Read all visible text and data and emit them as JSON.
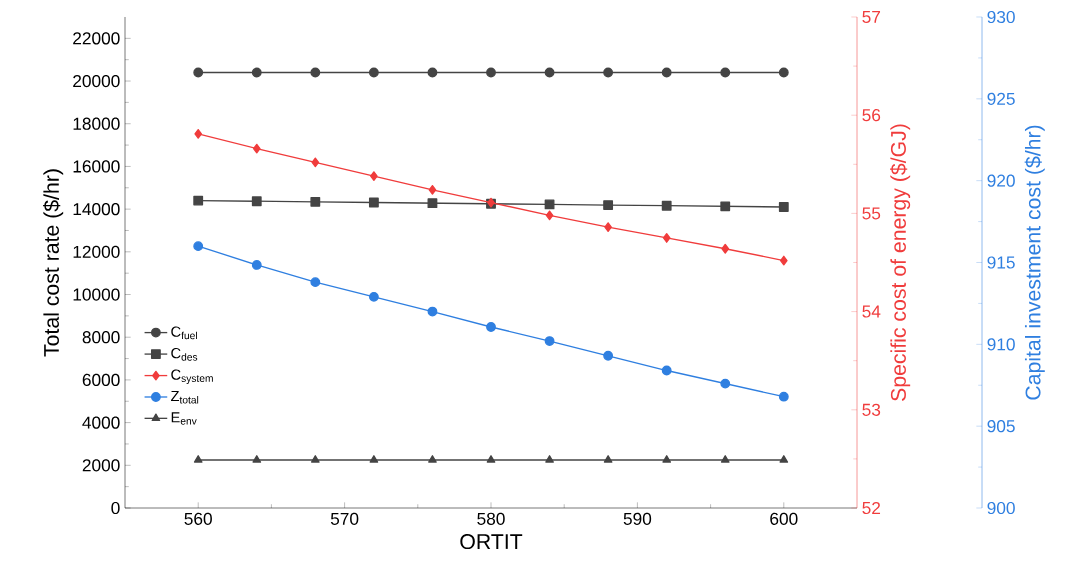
{
  "chart_data": {
    "type": "line",
    "xlabel": "ORTIT",
    "ylabel": "Total cost rate ($/hr)",
    "y2label": "Specific cost of energy ($/GJ)",
    "y3label": "Capital investment cost ($/hr)",
    "x": [
      560,
      564,
      568,
      572,
      576,
      580,
      584,
      588,
      592,
      596,
      600
    ],
    "xlim": [
      555,
      605
    ],
    "xticks": [
      560,
      570,
      580,
      590,
      600
    ],
    "ylim": [
      0,
      23000
    ],
    "yticks": [
      0,
      2000,
      4000,
      6000,
      8000,
      10000,
      12000,
      14000,
      16000,
      18000,
      20000,
      22000
    ],
    "y2lim": [
      52,
      57
    ],
    "y2ticks": [
      52,
      53,
      54,
      55,
      56,
      57
    ],
    "y3lim": [
      900,
      930
    ],
    "y3ticks": [
      900,
      905,
      910,
      915,
      920,
      925,
      930
    ],
    "legend": "left",
    "grid": false,
    "line_style": "solid",
    "series": [
      {
        "name": "C$_{fuel}$",
        "color": "#444444",
        "marker": "circle",
        "values": [
          20400,
          20400,
          20400,
          20400,
          20400,
          20400,
          20400,
          20400,
          20400,
          20400,
          20400
        ]
      },
      {
        "name": "C$_{des}$",
        "color": "#444444",
        "marker": "square",
        "values": [
          14400,
          14370,
          14340,
          14310,
          14280,
          14250,
          14220,
          14190,
          14160,
          14130,
          14100
        ]
      },
      {
        "name": "C$_{system}$",
        "color": "#f03c3c",
        "marker": "diamond",
        "axis": "y2",
        "values": [
          55.81,
          55.66,
          55.52,
          55.38,
          55.24,
          55.11,
          54.98,
          54.86,
          54.75,
          54.64,
          54.52
        ]
      },
      {
        "name": "Z$_{total}$",
        "color": "#2f7fe0",
        "marker": "circle",
        "axis": "y3",
        "values": [
          916.0,
          914.85,
          913.8,
          912.9,
          912.0,
          911.06,
          910.2,
          909.3,
          908.4,
          907.6,
          906.8
        ]
      },
      {
        "name": "E$_{env}$",
        "color": "#444444",
        "marker": "triangle",
        "values": [
          2250,
          2250,
          2250,
          2250,
          2250,
          2250,
          2250,
          2250,
          2250,
          2250,
          2250
        ]
      }
    ]
  }
}
